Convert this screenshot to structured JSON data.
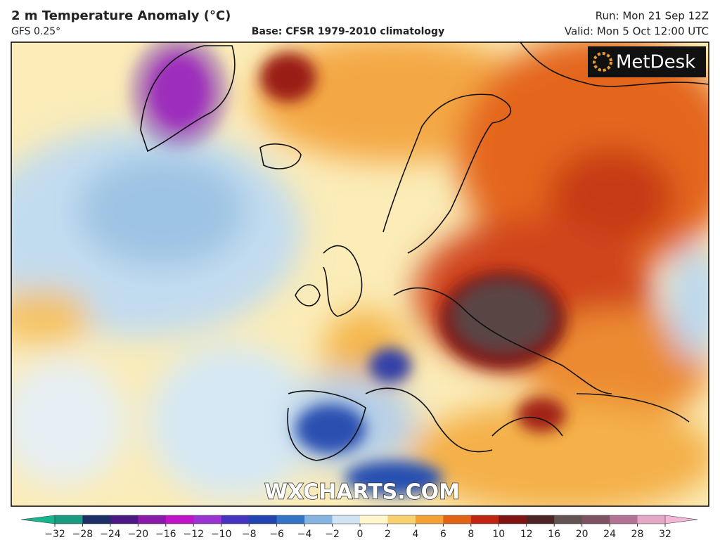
{
  "header": {
    "title": "2 m Temperature Anomaly (°C)",
    "model": "GFS 0.25°",
    "base": "Base: CFSR 1979-2010 climatology",
    "run": "Run: Mon 21 Sep 12Z",
    "valid": "Valid: Mon 5 Oct 12:00 UTC"
  },
  "map": {
    "logo": "MetDesk",
    "watermark": "WXCHARTS.COM"
  },
  "colorbar": {
    "ticks": [
      {
        "value": -32,
        "label": "−32"
      },
      {
        "value": -28,
        "label": "−28"
      },
      {
        "value": -24,
        "label": "−24"
      },
      {
        "value": -20,
        "label": "−20"
      },
      {
        "value": -16,
        "label": "−16"
      },
      {
        "value": -12,
        "label": "−12"
      },
      {
        "value": -10,
        "label": "−10"
      },
      {
        "value": -8,
        "label": "−8"
      },
      {
        "value": -6,
        "label": "−6"
      },
      {
        "value": -4,
        "label": "−4"
      },
      {
        "value": -2,
        "label": "−2"
      },
      0,
      2,
      4,
      6,
      8,
      10,
      12,
      16,
      20,
      24,
      28,
      32
    ],
    "colors": [
      "#1a9a80",
      "#1c2f66",
      "#4a1a80",
      "#8a1aa8",
      "#c014c8",
      "#9a34d0",
      "#4634c0",
      "#2244b0",
      "#3474c4",
      "#86b4e0",
      "#cfe3f2",
      "#fff6cc",
      "#f8d070",
      "#f2a232",
      "#e06414",
      "#c02412",
      "#801414",
      "#4e2424",
      "#625252",
      "#7e5262",
      "#b27294",
      "#e6a6c6"
    ],
    "low_color": "#17b58e",
    "high_color": "#f2b6d6"
  }
}
